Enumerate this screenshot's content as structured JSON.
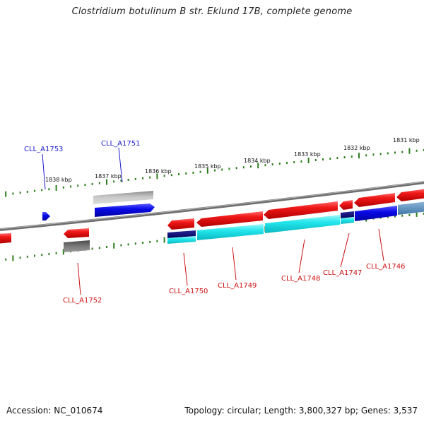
{
  "title": "Clostridium botulinum B str. Eklund 17B, complete genome",
  "footer": {
    "accession": "Accession: NC_010674",
    "topology": "Topology: circular; Length: 3,800,327 bp; Genes: 3,537"
  },
  "scale_labels": [
    "1838 kbp",
    "1837 kbp",
    "1836 kbp",
    "1835 kbp",
    "1834 kbp",
    "1833 kbp",
    "1832 kbp",
    "1831 kbp"
  ],
  "gene_tags": {
    "top": [
      "CLL_A1753",
      "CLL_A1751"
    ],
    "bottom": [
      "CLL_A1752",
      "CLL_A1750",
      "CLL_A1749",
      "CLL_A1748",
      "CLL_A1747",
      "CLL_A1746"
    ]
  },
  "colors": {
    "backbone": "#7a7a7a",
    "tick": "#2e7d1f",
    "forward_gene": "#1414e0",
    "reverse_gene": "#e01010",
    "cds": "#22e0e8",
    "pseudo": "#9a9a9a",
    "blue_label": "#1a1acc",
    "red_label": "#cc1111"
  }
}
